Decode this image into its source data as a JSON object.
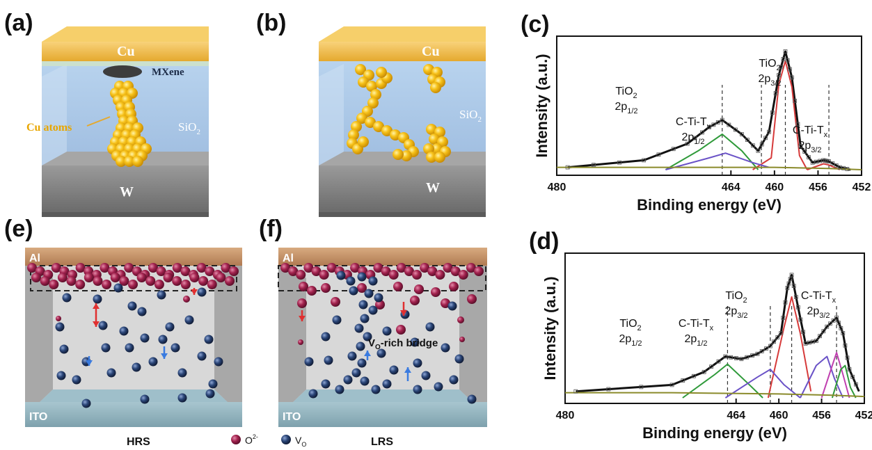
{
  "panels": {
    "a": {
      "label": "(a)",
      "top_electrode": "Cu",
      "bottom_electrode": "W",
      "interlayer": "MXene",
      "filament": "Cu atoms",
      "dielectric": "SiO",
      "dielectric_sub": "2"
    },
    "b": {
      "label": "(b)",
      "top_electrode": "Cu",
      "bottom_electrode": "W",
      "dielectric": "SiO",
      "dielectric_sub": "2"
    },
    "e": {
      "label": "(e)",
      "top_electrode": "Al",
      "bottom_electrode": "ITO",
      "state": "HRS"
    },
    "f": {
      "label": "(f)",
      "top_electrode": "Al",
      "bottom_electrode": "ITO",
      "state": "LRS",
      "bridge_main": "V",
      "bridge_sub": "O",
      "bridge_rest": "-rich bridge"
    },
    "legend": {
      "o_ion": "O",
      "o_ion_sup": "2-",
      "vacancy": "V",
      "vacancy_sub": "O"
    }
  },
  "colors": {
    "copper_top": "#f0b33a",
    "copper_side": "#d99a20",
    "sio2": "#a9c7e8",
    "tungsten": "#8a8a8a",
    "cu_atom": "#f5bd13",
    "al_electrode": "#c8946a",
    "ito": "#8fb2be",
    "o_ion": "#a3234f",
    "vacancy": "#27406f",
    "fit_envelope": "#111111",
    "fit_ti2p32": "#d63a3a",
    "fit_ti2p12": "#2f9a3a",
    "fit_ctitx": "#6a52c7",
    "fit_background": "#8a8a2a",
    "fit_magenta": "#c040b0"
  },
  "chart_data": [
    {
      "panel": "(c)",
      "type": "line",
      "xlabel": "Binding energy (eV)",
      "ylabel": "Intensity (a.u.)",
      "xlim": [
        480,
        452
      ],
      "x_reversed": true,
      "xticks": [
        480,
        464,
        460,
        456,
        452
      ],
      "peaks": [
        {
          "label_main": "TiO",
          "label_sub": "2",
          "label_line2": "2p",
          "label_line2_sub": "1/2",
          "position": 464.8
        },
        {
          "label_main": "C-Ti-T",
          "label_sub": "x",
          "label_line2": "2p",
          "label_line2_sub": "1/2",
          "position": 461.2
        },
        {
          "label_main": "TiO",
          "label_sub": "2",
          "label_line2": "2p",
          "label_line2_sub": "3/2",
          "position": 459.0
        },
        {
          "label_main": "C-Ti-T",
          "label_sub": "x",
          "label_line2": "2p",
          "label_line2_sub": "3/2",
          "position": 455.0
        }
      ],
      "series": [
        {
          "color": "#111111",
          "values": [
            [
              479,
              0.02
            ],
            [
              472,
              0.08
            ],
            [
              468,
              0.22
            ],
            [
              466,
              0.36
            ],
            [
              464.8,
              0.42
            ],
            [
              463,
              0.3
            ],
            [
              461.5,
              0.16
            ],
            [
              460.5,
              0.32
            ],
            [
              459.6,
              0.8
            ],
            [
              459.0,
              1.0
            ],
            [
              458.4,
              0.78
            ],
            [
              457.6,
              0.2
            ],
            [
              456.5,
              0.06
            ],
            [
              455.5,
              0.08
            ],
            [
              455,
              0.07
            ],
            [
              454,
              0.02
            ],
            [
              453,
              0.0
            ]
          ]
        },
        {
          "color": "#d63a3a",
          "values": [
            [
              462,
              0.0
            ],
            [
              460.3,
              0.1
            ],
            [
              459.6,
              0.72
            ],
            [
              459.0,
              0.92
            ],
            [
              458.4,
              0.7
            ],
            [
              457.7,
              0.12
            ],
            [
              457,
              0.0
            ]
          ]
        },
        {
          "color": "#2f9a3a",
          "values": [
            [
              470,
              0.0
            ],
            [
              467,
              0.16
            ],
            [
              464.8,
              0.3
            ],
            [
              463,
              0.16
            ],
            [
              461.5,
              0.0
            ]
          ]
        },
        {
          "color": "#6a52c7",
          "values": [
            [
              470,
              0.0
            ],
            [
              466,
              0.1
            ],
            [
              464.5,
              0.14
            ],
            [
              462,
              0.06
            ],
            [
              460.5,
              0.02
            ]
          ]
        },
        {
          "color": "#d63a3a",
          "values": [
            [
              457,
              0.0
            ],
            [
              455.5,
              0.05
            ],
            [
              455,
              0.04
            ],
            [
              454,
              0.0
            ]
          ]
        },
        {
          "color": "#8a8a2a",
          "values": [
            [
              480,
              0.02
            ],
            [
              470,
              0.02
            ],
            [
              460,
              0.02
            ],
            [
              455,
              0.01
            ],
            [
              452,
              0.0
            ]
          ]
        }
      ]
    },
    {
      "panel": "(d)",
      "type": "line",
      "xlabel": "Binding energy (eV)",
      "ylabel": "Intensity (a.u.)",
      "xlim": [
        480,
        452
      ],
      "x_reversed": true,
      "xticks": [
        480,
        464,
        460,
        456,
        452
      ],
      "peaks": [
        {
          "label_main": "TiO",
          "label_sub": "2",
          "label_line2": "2p",
          "label_line2_sub": "1/2",
          "position": 464.8
        },
        {
          "label_main": "C-Ti-T",
          "label_sub": "x",
          "label_line2": "2p",
          "label_line2_sub": "1/2",
          "position": 460.8
        },
        {
          "label_main": "TiO",
          "label_sub": "2",
          "label_line2": "2p",
          "label_line2_sub": "3/2",
          "position": 458.8
        },
        {
          "label_main": "C-Ti-T",
          "label_sub": "x",
          "label_line2": "2p",
          "label_line2_sub": "3/2",
          "position": 454.6
        }
      ],
      "series": [
        {
          "color": "#111111",
          "values": [
            [
              479,
              0.05
            ],
            [
              470,
              0.1
            ],
            [
              467,
              0.2
            ],
            [
              465,
              0.32
            ],
            [
              463.5,
              0.3
            ],
            [
              462,
              0.34
            ],
            [
              460.8,
              0.4
            ],
            [
              459.8,
              0.5
            ],
            [
              459.2,
              0.85
            ],
            [
              458.8,
              0.95
            ],
            [
              458.2,
              0.7
            ],
            [
              457.5,
              0.42
            ],
            [
              456.5,
              0.44
            ],
            [
              455.5,
              0.55
            ],
            [
              454.6,
              0.62
            ],
            [
              454,
              0.5
            ],
            [
              453.4,
              0.22
            ],
            [
              452.5,
              0.05
            ]
          ]
        },
        {
          "color": "#d63a3a",
          "values": [
            [
              461,
              0.0
            ],
            [
              459.5,
              0.55
            ],
            [
              458.8,
              0.78
            ],
            [
              458,
              0.5
            ],
            [
              457,
              0.05
            ]
          ]
        },
        {
          "color": "#2f9a3a",
          "values": [
            [
              469,
              0.0
            ],
            [
              466,
              0.18
            ],
            [
              464.8,
              0.26
            ],
            [
              463,
              0.12
            ],
            [
              461.5,
              0.0
            ]
          ]
        },
        {
          "color": "#6a52c7",
          "values": [
            [
              465,
              0.0
            ],
            [
              462,
              0.16
            ],
            [
              460.8,
              0.22
            ],
            [
              459.5,
              0.1
            ],
            [
              458,
              0.0
            ]
          ]
        },
        {
          "color": "#6a52c7",
          "values": [
            [
              458,
              0.0
            ],
            [
              456.5,
              0.25
            ],
            [
              455.5,
              0.32
            ],
            [
              454.8,
              0.15
            ],
            [
              454,
              0.0
            ]
          ]
        },
        {
          "color": "#c040b0",
          "values": [
            [
              456,
              0.0
            ],
            [
              455,
              0.25
            ],
            [
              454.6,
              0.35
            ],
            [
              454,
              0.18
            ],
            [
              453.4,
              0.0
            ]
          ]
        },
        {
          "color": "#2f9a3a",
          "values": [
            [
              455,
              0.0
            ],
            [
              454.2,
              0.22
            ],
            [
              453.8,
              0.25
            ],
            [
              453.3,
              0.08
            ],
            [
              452.8,
              0.0
            ]
          ]
        },
        {
          "color": "#8a8a2a",
          "values": [
            [
              480,
              0.04
            ],
            [
              470,
              0.04
            ],
            [
              460,
              0.03
            ],
            [
              455,
              0.02
            ],
            [
              452,
              0.01
            ]
          ]
        }
      ]
    }
  ]
}
